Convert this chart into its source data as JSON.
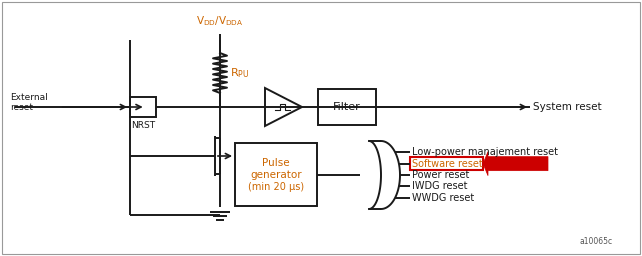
{
  "bg_color": "#ffffff",
  "border_color": "#aaaaaa",
  "line_color": "#1a1a1a",
  "text_color": "#1a1a1a",
  "orange_color": "#cc6600",
  "red_color": "#cc0000",
  "fig_width": 6.42,
  "fig_height": 2.56,
  "watermark": "a10065c",
  "labels": {
    "external_reset": "External\nreset",
    "nrst": "NRST",
    "filter": "Filter",
    "system_reset": "System reset",
    "pulse_gen_1": "Pulse",
    "pulse_gen_2": "generator",
    "pulse_gen_3": "(min 20 μs)",
    "wwdg": "WWDG reset",
    "iwdg": "IWDG reset",
    "power": "Power reset",
    "software": "Software reset",
    "lowpower": "Low-power mana​jement reset"
  }
}
